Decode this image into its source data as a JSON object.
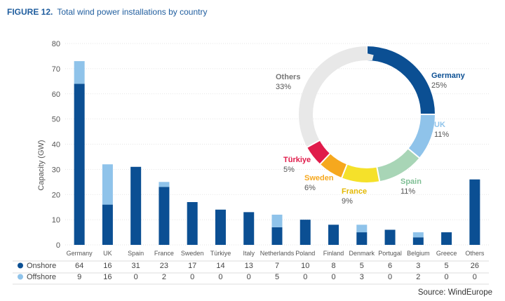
{
  "figure": {
    "label": "FIGURE 12.",
    "title": "Total wind power installations by country",
    "source": "Source: WindEurope"
  },
  "colors": {
    "onshore": "#0b4f93",
    "offshore": "#8fc3ea",
    "axis_text": "#555555",
    "grid": "#dddddd"
  },
  "chart_data": [
    {
      "type": "bar",
      "stacked": true,
      "title": "Total wind power installations by country",
      "ylabel": "Capacity (GW)",
      "xlabel": "",
      "ylim": [
        0,
        80
      ],
      "yticks": [
        0,
        10,
        20,
        30,
        40,
        50,
        60,
        70,
        80
      ],
      "grid": true,
      "categories": [
        "Germany",
        "UK",
        "Spain",
        "France",
        "Sweden",
        "Türkiye",
        "Italy",
        "Netherlands",
        "Poland",
        "Finland",
        "Denmark",
        "Portugal",
        "Belgium",
        "Greece",
        "Others"
      ],
      "series": [
        {
          "name": "Onshore",
          "color": "#0b4f93",
          "values": [
            64,
            16,
            31,
            23,
            17,
            14,
            13,
            7,
            10,
            8,
            5,
            6,
            3,
            5,
            26
          ]
        },
        {
          "name": "Offshore",
          "color": "#8fc3ea",
          "values": [
            9,
            16,
            0,
            2,
            0,
            0,
            0,
            5,
            0,
            0,
            3,
            0,
            2,
            0,
            0
          ]
        }
      ],
      "table": true
    },
    {
      "type": "pie",
      "donut": true,
      "slices": [
        {
          "label": "Germany",
          "value": 25,
          "display": "25%",
          "color": "#0b4f93"
        },
        {
          "label": "UK",
          "value": 11,
          "display": "11%",
          "color": "#8fc3ea"
        },
        {
          "label": "Spain",
          "value": 11,
          "display": "11%",
          "color": "#a8d5b6"
        },
        {
          "label": "France",
          "value": 9,
          "display": "9%",
          "color": "#f5e12a"
        },
        {
          "label": "Sweden",
          "value": 6,
          "display": "6%",
          "color": "#f6a81e"
        },
        {
          "label": "Türkiye",
          "value": 5,
          "display": "5%",
          "color": "#e01b4a"
        },
        {
          "label": "Others",
          "value": 33,
          "display": "33%",
          "color": "#e8e8e8"
        }
      ]
    }
  ]
}
